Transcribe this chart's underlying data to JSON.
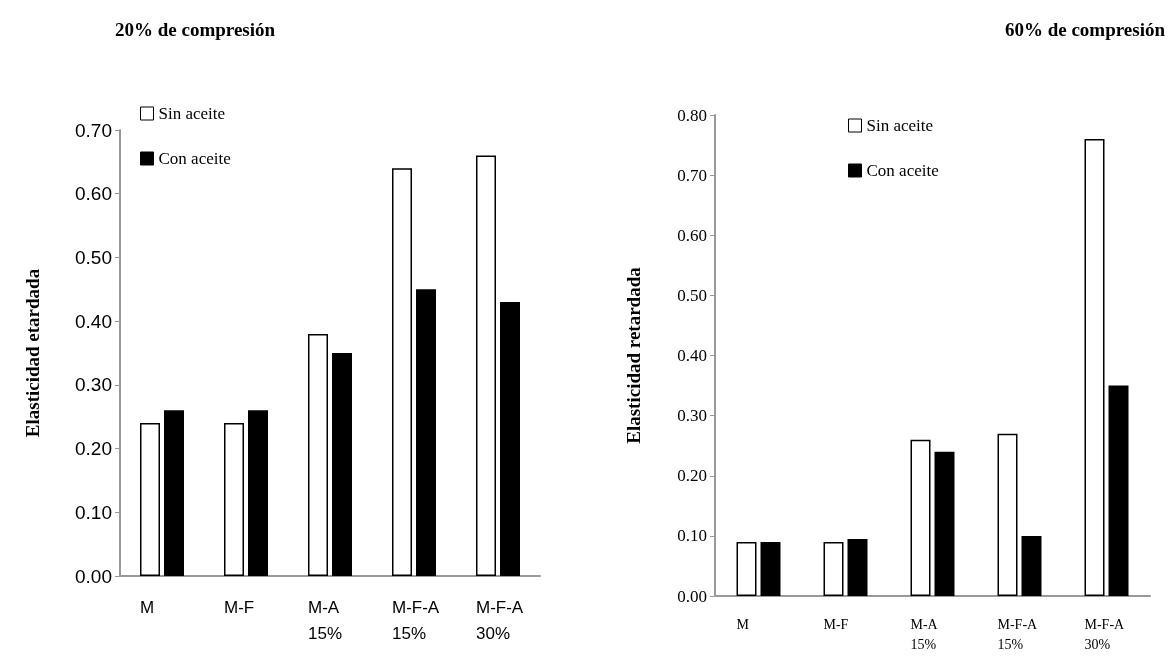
{
  "chart_data": [
    {
      "type": "bar",
      "title": "20% de compresión",
      "ylabel": "Elasticidad etardada",
      "categories": [
        "M",
        "M-F",
        "M-A\n15%",
        "M-F-A\n15%",
        "M-F-A\n30%"
      ],
      "series": [
        {
          "name": "Sin aceite",
          "color": "#ffffff",
          "values": [
            0.24,
            0.24,
            0.38,
            0.64,
            0.66
          ]
        },
        {
          "name": "Con aceite",
          "color": "#000000",
          "values": [
            0.26,
            0.26,
            0.35,
            0.45,
            0.43
          ]
        }
      ],
      "ylim": [
        0,
        0.7
      ],
      "yticks": [
        {
          "value": 0,
          "label": "0.00"
        },
        {
          "value": 0.1,
          "label": "0.10"
        },
        {
          "value": 0.2,
          "label": "0.20"
        },
        {
          "value": 0.3,
          "label": "0.30"
        },
        {
          "value": 0.4,
          "label": "0.40"
        },
        {
          "value": 0.5,
          "label": "0.50"
        },
        {
          "value": 0.6,
          "label": "0.60"
        },
        {
          "value": 0.7,
          "label": "0.70"
        }
      ],
      "grid": false,
      "legend": "top left"
    },
    {
      "type": "bar",
      "title": "60% de compresión",
      "ylabel": "Elasticidad retardada",
      "categories": [
        "M",
        "M-F",
        "M-A\n15%",
        "M-F-A\n15%",
        "M-F-A\n30%"
      ],
      "series": [
        {
          "name": "Sin aceite",
          "color": "#ffffff",
          "values": [
            0.09,
            0.09,
            0.26,
            0.27,
            0.76
          ]
        },
        {
          "name": "Con aceite",
          "color": "#000000",
          "values": [
            0.09,
            0.095,
            0.24,
            0.1,
            0.35
          ]
        }
      ],
      "ylim": [
        0,
        0.8
      ],
      "yticks": [
        {
          "value": 0,
          "label": "0.00"
        },
        {
          "value": 0.1,
          "label": "0.10"
        },
        {
          "value": 0.2,
          "label": "0.20"
        },
        {
          "value": 0.3,
          "label": "0.30"
        },
        {
          "value": 0.4,
          "label": "0.40"
        },
        {
          "value": 0.5,
          "label": "0.50"
        },
        {
          "value": 0.6,
          "label": "0.60"
        },
        {
          "value": 0.7,
          "label": "0.70"
        },
        {
          "value": 0.8,
          "label": "0.80"
        }
      ],
      "grid": false,
      "legend": "top"
    }
  ]
}
